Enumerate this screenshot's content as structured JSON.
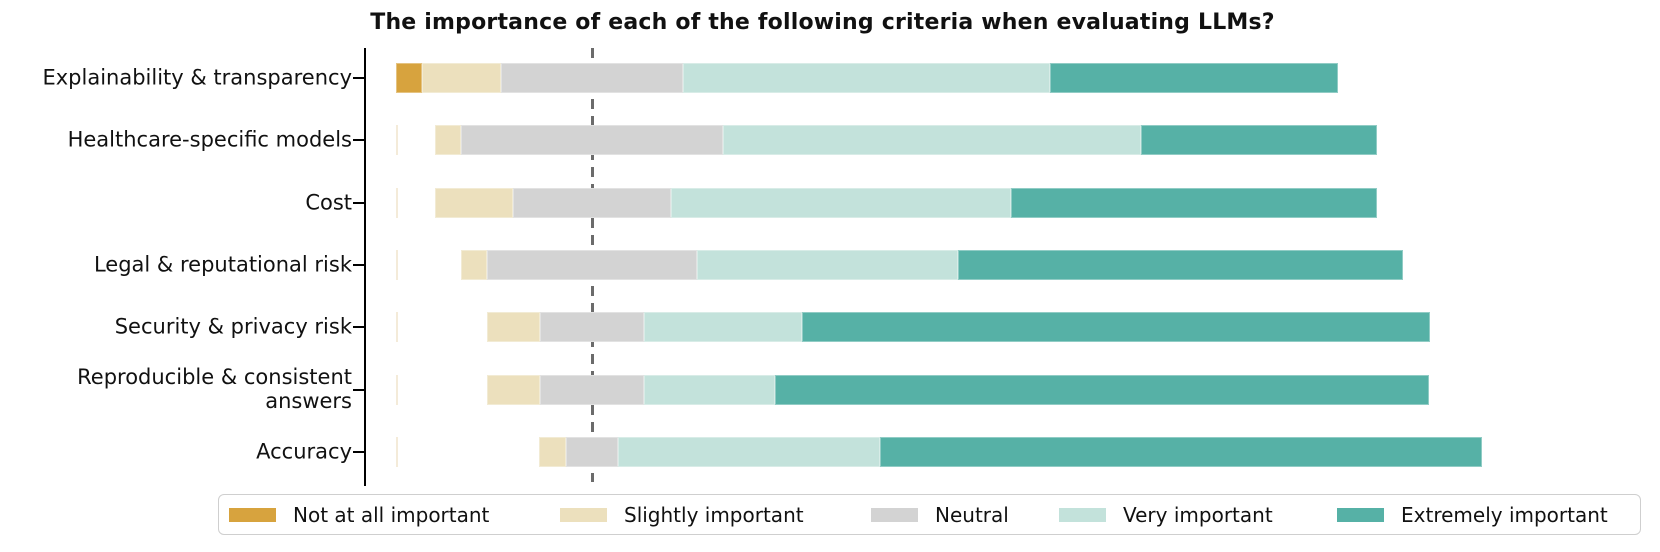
{
  "title": "The importance of each of the following criteria when evaluating LLMs?",
  "chart_data": {
    "type": "bar",
    "variant": "diverging-stacked-likert",
    "orientation": "horizontal",
    "title": "The importance of each of the following criteria when evaluating LLMs?",
    "units": "percent of responses",
    "categories": [
      "Explainability & transparency",
      "Healthcare-specific models",
      "Cost",
      "Legal & reputational risk",
      "Security & privacy risk",
      "Reproducible & consistent\nanswers",
      "Accuracy"
    ],
    "series": [
      {
        "name": "Not at all important",
        "color": "#D7A33E",
        "values": [
          2.8,
          0,
          0,
          0,
          0,
          0,
          0
        ]
      },
      {
        "name": "Slightly important",
        "color": "#ECE0BD",
        "values": [
          8.3,
          2.8,
          8.3,
          2.8,
          5.6,
          5.6,
          2.8
        ]
      },
      {
        "name": "Neutral",
        "color": "#D3D3D3",
        "values": [
          19.4,
          27.8,
          16.7,
          22.2,
          11.1,
          11.1,
          5.6
        ]
      },
      {
        "name": "Very important",
        "color": "#C3E2DB",
        "values": [
          38.9,
          44.4,
          36.1,
          27.8,
          16.7,
          13.9,
          27.8
        ]
      },
      {
        "name": "Extremely important",
        "color": "#56B1A6",
        "values": [
          30.6,
          25.0,
          38.9,
          47.2,
          66.7,
          69.4,
          63.9
        ]
      }
    ],
    "center_line": {
      "style": "dashed",
      "color": "#6b6b6b",
      "meaning": "neutral midpoint reference"
    },
    "bar_total_percent": 100,
    "grid": false,
    "x_tick_labels": [],
    "legend_position": "bottom"
  },
  "legend": {
    "items": [
      {
        "label": "Not at all important",
        "color": "#D7A33E"
      },
      {
        "label": "Slightly important",
        "color": "#ECE0BD"
      },
      {
        "label": "Neutral",
        "color": "#D3D3D3"
      },
      {
        "label": "Very important",
        "color": "#C3E2DB"
      },
      {
        "label": "Extremely important",
        "color": "#56B1A6"
      }
    ]
  }
}
